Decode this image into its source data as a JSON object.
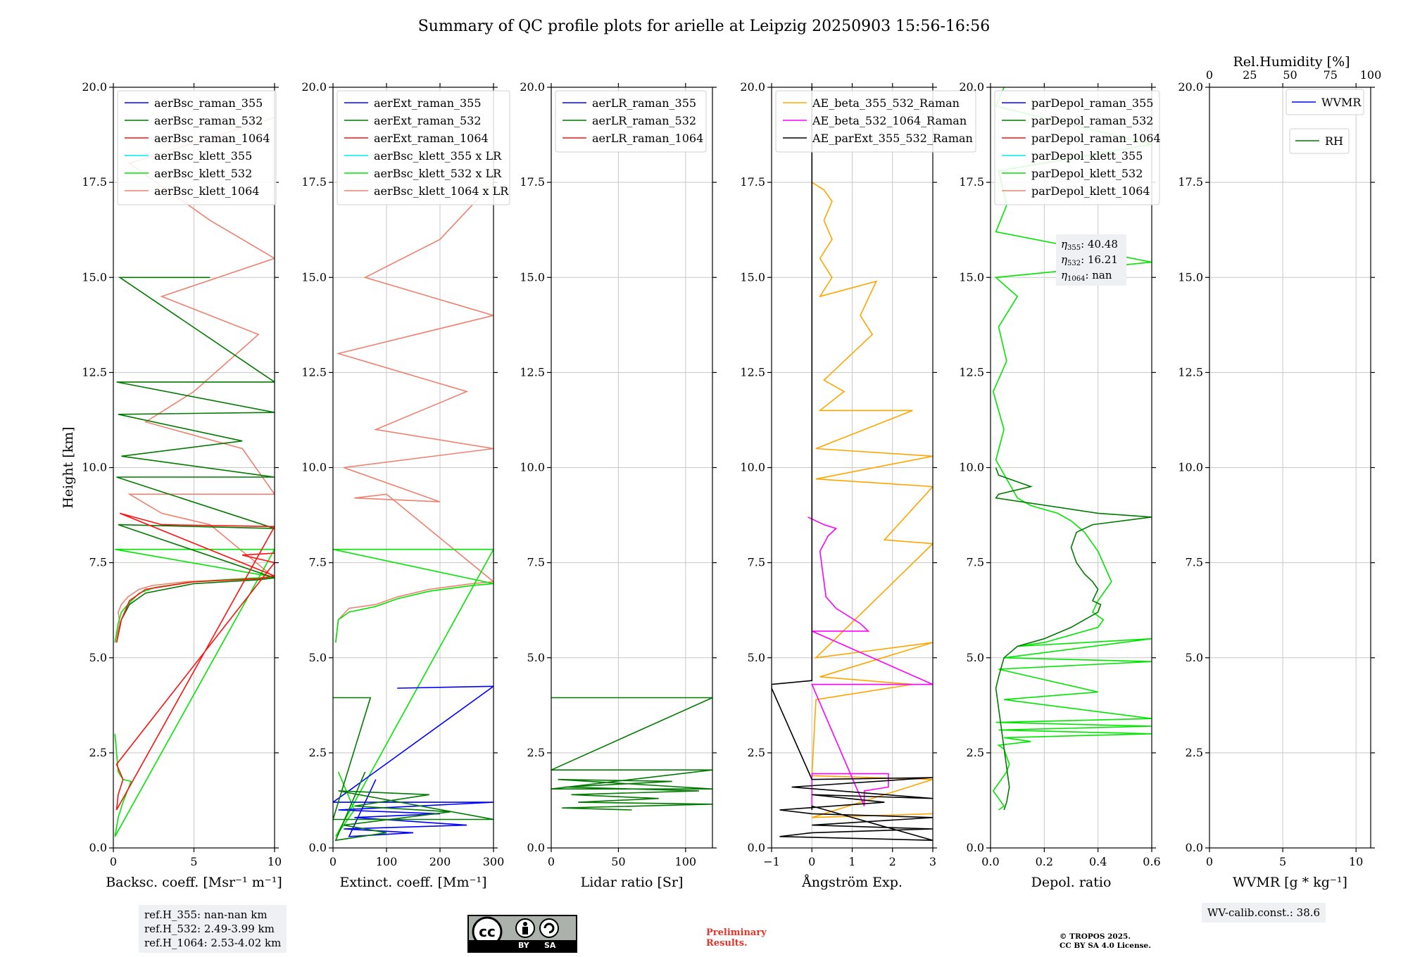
{
  "title": "Summary of QC profile plots for arielle at Leipzig 20250903 15:56-16:56",
  "colors": {
    "blue": "#0000ff",
    "darkgreen": "#007a00",
    "red": "#ff1010",
    "cyan": "#00e8e8",
    "lime": "#00e600",
    "salmon": "#f08070",
    "orange": "#ffa500",
    "magenta": "#ff00ff",
    "black": "#000000",
    "grid": "#c8c8c8"
  },
  "chart_data": [
    {
      "type": "line",
      "id": "backscatter",
      "xlabel": "Backsc. coeff. [Msr⁻¹ m⁻¹]",
      "ylabel": "Height [km]",
      "xlim": [
        0,
        10
      ],
      "ylim": [
        0,
        20
      ],
      "xticks": [
        "0",
        "5",
        "10"
      ],
      "xtick_values": [
        0,
        5,
        10
      ],
      "legend": [
        "aerBsc_raman_355",
        "aerBsc_raman_532",
        "aerBsc_raman_1064",
        "aerBsc_klett_355",
        "aerBsc_klett_532",
        "aerBsc_klett_1064"
      ],
      "series": [
        {
          "name": "aerBsc_klett_1064",
          "color": "salmon",
          "x": [
            0.1,
            0.4,
            0.3,
            0.5,
            0.9,
            1.6,
            2.4,
            4.5,
            7.5,
            10,
            6,
            3,
            1,
            10,
            8,
            2,
            5,
            9,
            3,
            10,
            6,
            1,
            10
          ],
          "y": [
            5.4,
            5.9,
            6.2,
            6.4,
            6.6,
            6.8,
            6.9,
            7.0,
            7.05,
            7.1,
            8.5,
            8.8,
            9.3,
            9.3,
            10.5,
            11.2,
            12,
            13.5,
            14.5,
            15.5,
            16.5,
            18,
            19.2
          ]
        },
        {
          "name": "aerBsc_klett_532",
          "color": "lime",
          "x": [
            0.1,
            0.3,
            0.5,
            0.9,
            1.6,
            2.6,
            5,
            8,
            10,
            0.1,
            10,
            0.1,
            0.3,
            0.6,
            1.1,
            0.6,
            0.3,
            0.2,
            0.1
          ],
          "y": [
            5.4,
            5.9,
            6.2,
            6.4,
            6.7,
            6.85,
            7.0,
            7.08,
            7.12,
            7.85,
            7.85,
            0.3,
            0.8,
            1.2,
            1.75,
            1.8,
            2.0,
            2.5,
            3.0
          ]
        },
        {
          "name": "aerBsc_raman_532",
          "color": "darkgreen",
          "x": [
            0.2,
            0.5,
            1,
            2,
            5,
            9,
            10,
            0.3,
            10,
            0.2,
            10,
            0.5,
            8,
            0.3,
            10,
            0.2,
            10,
            0.4,
            6
          ],
          "y": [
            5.4,
            6.0,
            6.4,
            6.7,
            6.95,
            7.05,
            7.1,
            8.5,
            8.4,
            9.75,
            9.75,
            10.3,
            10.7,
            11.4,
            11.45,
            12.25,
            12.25,
            15,
            15
          ]
        },
        {
          "name": "aerBsc_raman_1064",
          "color": "red",
          "x": [
            0.2,
            0.5,
            1,
            2,
            5,
            9,
            10,
            0.4,
            3,
            10,
            0.2,
            0.3,
            0.6,
            0.4,
            0.3,
            0.2,
            10,
            8,
            10
          ],
          "y": [
            5.4,
            6.0,
            6.5,
            6.8,
            7.0,
            7.08,
            7.15,
            8.8,
            8.5,
            8.45,
            1.0,
            1.4,
            1.8,
            2.0,
            2.1,
            2.2,
            7.5,
            7.7,
            7.75
          ]
        }
      ]
    },
    {
      "type": "line",
      "id": "extinction",
      "xlabel": "Extinct. coeff. [Mm⁻¹]",
      "xlim": [
        0,
        300
      ],
      "ylim": [
        0,
        20
      ],
      "xticks": [
        "0",
        "100",
        "200",
        "300"
      ],
      "xtick_values": [
        0,
        100,
        200,
        300
      ],
      "legend": [
        "aerExt_raman_355",
        "aerExt_raman_532",
        "aerExt_raman_1064",
        "aerBsc_klett_355 x LR",
        "aerBsc_klett_532 x LR",
        "aerBsc_klett_1064 x LR"
      ],
      "series": [
        {
          "name": "aerBsc_klett_1064 x LR",
          "color": "salmon",
          "x": [
            5,
            10,
            30,
            80,
            120,
            180,
            260,
            300,
            100,
            40,
            200,
            20,
            300,
            80,
            250,
            10,
            300,
            60,
            200,
            300
          ],
          "y": [
            5.4,
            6.0,
            6.3,
            6.4,
            6.6,
            6.8,
            6.95,
            7.0,
            9.3,
            9.2,
            9.1,
            10,
            10.5,
            11,
            12,
            13,
            14,
            15,
            16,
            17.5
          ]
        },
        {
          "name": "aerBsc_klett_532 x LR",
          "color": "lime",
          "x": [
            5,
            10,
            30,
            80,
            120,
            180,
            260,
            300,
            0,
            300,
            5,
            40,
            10
          ],
          "y": [
            5.4,
            6.0,
            6.2,
            6.35,
            6.55,
            6.75,
            6.9,
            6.95,
            7.85,
            7.85,
            0.3,
            1.0,
            2.0
          ]
        },
        {
          "name": "aerExt_raman_355",
          "color": "blue",
          "x": [
            120,
            300,
            0,
            300,
            10,
            200,
            40,
            250,
            20,
            150,
            30,
            80
          ],
          "y": [
            4.2,
            4.25,
            1.2,
            1.2,
            1.0,
            0.9,
            0.8,
            0.6,
            0.5,
            0.4,
            0.3,
            1.8
          ]
        },
        {
          "name": "aerExt_raman_532",
          "color": "darkgreen",
          "x": [
            0,
            70,
            0,
            300,
            10,
            180,
            40,
            220,
            20,
            100,
            5,
            60
          ],
          "y": [
            3.95,
            3.95,
            0.75,
            0.75,
            1.5,
            1.4,
            1.1,
            0.95,
            0.6,
            0.4,
            0.2,
            2.0
          ]
        }
      ]
    },
    {
      "type": "line",
      "id": "lidar-ratio",
      "xlabel": "Lidar ratio [Sr]",
      "xlim": [
        0,
        120
      ],
      "ylim": [
        0,
        20
      ],
      "xticks": [
        "0",
        "50",
        "100"
      ],
      "xtick_values": [
        0,
        50,
        100
      ],
      "legend": [
        "aerLR_raman_355",
        "aerLR_raman_532",
        "aerLR_raman_1064"
      ],
      "series": [
        {
          "name": "aerLR_raman_532",
          "color": "darkgreen",
          "x": [
            0,
            120,
            0,
            120,
            0,
            120,
            5,
            90,
            10,
            110,
            15,
            80,
            20,
            120,
            8,
            60
          ],
          "y": [
            3.95,
            3.95,
            2.05,
            2.05,
            1.55,
            1.55,
            1.8,
            1.75,
            1.6,
            1.5,
            1.4,
            1.3,
            1.2,
            1.15,
            1.05,
            1.0
          ]
        }
      ]
    },
    {
      "type": "line",
      "id": "angstrom",
      "xlabel": "Ångström Exp.",
      "xlim": [
        -1,
        3
      ],
      "ylim": [
        0,
        20
      ],
      "xticks": [
        "−1",
        "0",
        "1",
        "2",
        "3"
      ],
      "xtick_values": [
        -1,
        0,
        1,
        2,
        3
      ],
      "legend": [
        "AE_beta_355_532_Raman",
        "AE_beta_532_1064_Raman",
        "AE_parExt_355_532_Raman"
      ],
      "series": [
        {
          "name": "AE_beta_355_532_Raman",
          "color": "orange",
          "x": [
            0,
            0.3,
            0.5,
            0.3,
            0.5,
            0.2,
            0.5,
            0.2,
            1.6,
            1.2,
            1.5,
            0.3,
            0.8,
            0.2,
            1.5,
            2.5,
            0.1,
            3,
            0.1,
            3,
            1.8,
            3,
            0.1,
            3,
            0.2,
            2.5,
            0.1,
            0,
            3,
            0,
            3
          ],
          "y": [
            17.5,
            17.3,
            17.0,
            16.5,
            16.0,
            15.5,
            15.0,
            14.5,
            14.9,
            14.0,
            13.5,
            12.3,
            12.0,
            11.5,
            11.5,
            11.5,
            10.5,
            10.3,
            9.7,
            9.5,
            8.1,
            8.0,
            5.0,
            5.4,
            4.5,
            4.3,
            3.9,
            1.9,
            1.8,
            0.8,
            0.9
          ]
        },
        {
          "name": "AE_beta_532_1064_Raman",
          "color": "magenta",
          "x": [
            -0.1,
            0.3,
            0.6,
            0.4,
            0.2,
            0.35,
            0.6,
            1.2,
            1.4,
            0,
            3,
            0,
            1.3,
            1.3,
            1.9,
            1.9,
            0,
            0
          ],
          "y": [
            8.7,
            8.5,
            8.4,
            8.2,
            7.8,
            6.6,
            6.3,
            5.9,
            5.7,
            5.7,
            4.3,
            4.3,
            1.1,
            1.5,
            1.6,
            1.95,
            1.95,
            1.1
          ]
        },
        {
          "name": "AE_parExt_355_532_Raman",
          "color": "black",
          "x": [
            0,
            0,
            -1,
            -1,
            0,
            3,
            -0.5,
            3,
            0,
            1.8,
            -0.8,
            0,
            3,
            0,
            3,
            0,
            -0.8,
            3,
            0,
            0
          ],
          "y": [
            20,
            4.4,
            4.3,
            4.2,
            1.8,
            1.85,
            1.6,
            1.3,
            1.4,
            1.2,
            1.0,
            0.9,
            0.8,
            0.6,
            0.5,
            0.4,
            0.3,
            0.2,
            1.1,
            1.0
          ]
        }
      ]
    },
    {
      "type": "line",
      "id": "depolarization",
      "xlabel": "Depol. ratio",
      "xlim": [
        0,
        0.6
      ],
      "ylim": [
        0,
        20
      ],
      "xticks": [
        "0.0",
        "0.2",
        "0.4",
        "0.6"
      ],
      "xtick_values": [
        0,
        0.2,
        0.4,
        0.6
      ],
      "legend": [
        "parDepol_raman_355",
        "parDepol_raman_532",
        "parDepol_raman_1064",
        "parDepol_klett_355",
        "parDepol_klett_532",
        "parDepol_klett_1064"
      ],
      "series": [
        {
          "name": "parDepol_klett_532",
          "color": "lime",
          "x": [
            0.05,
            0.02,
            0.6,
            0.03,
            0.06,
            0.02,
            0.6,
            0.02,
            0.1,
            0.03,
            0.06,
            0.01,
            0.05,
            0.02,
            0.1,
            0.15,
            0.25,
            0.3,
            0.35,
            0.4,
            0.45,
            0.4,
            0.38,
            0.42,
            0.4,
            0.3,
            0.2,
            0.1,
            0.6,
            0.05,
            0.6,
            0.03,
            0.4,
            0.05,
            0.6,
            0.02,
            0.6,
            0.03,
            0.6,
            0.05,
            0.15,
            0.03,
            0.05,
            0.07,
            0.06,
            0.04,
            0.02,
            0.01,
            0.03,
            0.05,
            0.03
          ],
          "y": [
            20,
            19.5,
            18.5,
            17.8,
            16.9,
            16.2,
            15.4,
            15.0,
            14.5,
            13.7,
            12.8,
            12.0,
            11.0,
            10.2,
            9.2,
            9.0,
            8.8,
            8.6,
            8.3,
            7.8,
            7.0,
            6.5,
            6.2,
            6.0,
            5.8,
            5.6,
            5.4,
            5.3,
            5.5,
            5.0,
            4.9,
            4.7,
            4.1,
            3.9,
            3.4,
            3.3,
            3.2,
            3.1,
            3.0,
            2.9,
            2.8,
            2.7,
            2.6,
            2.2,
            2.0,
            1.8,
            1.6,
            1.5,
            1.3,
            1.1,
            1.0
          ]
        },
        {
          "name": "parDepol_raman_532",
          "color": "darkgreen",
          "x": [
            0.02,
            0.03,
            0.15,
            0.03,
            0.02,
            0.4,
            0.6,
            0.38,
            0.32,
            0.3,
            0.32,
            0.35,
            0.38,
            0.4,
            0.38,
            0.41,
            0.4,
            0.35,
            0.3,
            0.2,
            0.1,
            0.05,
            0.03,
            0.02,
            0.07,
            0.06,
            0.05
          ],
          "y": [
            10.0,
            9.8,
            9.5,
            9.3,
            9.2,
            8.8,
            8.7,
            8.5,
            8.3,
            7.9,
            7.5,
            7.2,
            7.0,
            6.8,
            6.5,
            6.4,
            6.2,
            6.0,
            5.8,
            5.5,
            5.3,
            5.0,
            4.5,
            4.2,
            1.6,
            1.2,
            1.0
          ]
        }
      ]
    },
    {
      "type": "line",
      "id": "wvmr",
      "xlabel": "WVMR [g * kg⁻¹]",
      "xlim": [
        0,
        11
      ],
      "ylim": [
        0,
        20
      ],
      "xticks": [
        "0",
        "5",
        "10"
      ],
      "xtick_values": [
        0,
        5,
        10
      ],
      "top_axis_label": "Rel.Humidity [%]",
      "top_ticks": [
        "0",
        "25",
        "50",
        "75",
        "100"
      ],
      "top_tick_values": [
        0,
        25,
        50,
        75,
        100
      ],
      "legend": [
        "WVMR",
        "RH"
      ],
      "series": []
    }
  ],
  "y_ticks": [
    "0.0",
    "2.5",
    "5.0",
    "7.5",
    "10.0",
    "12.5",
    "15.0",
    "17.5",
    "20.0"
  ],
  "y_tick_values": [
    0,
    2.5,
    5,
    7.5,
    10,
    12.5,
    15,
    17.5,
    20
  ],
  "eta_lines": [
    "η355: 40.48",
    "η532: 16.21",
    "η1064: nan"
  ],
  "eta": {
    "355": "40.48",
    "532": "16.21",
    "1064": "nan"
  },
  "ref_heights": {
    "line1": "ref.H_355: nan-nan km",
    "line2": "ref.H_532: 2.49-3.99 km",
    "line3": "ref.H_1064: 2.53-4.02 km"
  },
  "wv_calib": "WV-calib.const.: 38.6",
  "license_badge": {
    "by": "BY",
    "sa": "SA"
  },
  "preliminary": {
    "line1": "Preliminary",
    "line2": "Results."
  },
  "copyright": {
    "line1": "© TROPOS 2025.",
    "line2": "CC BY SA 4.0 License."
  }
}
